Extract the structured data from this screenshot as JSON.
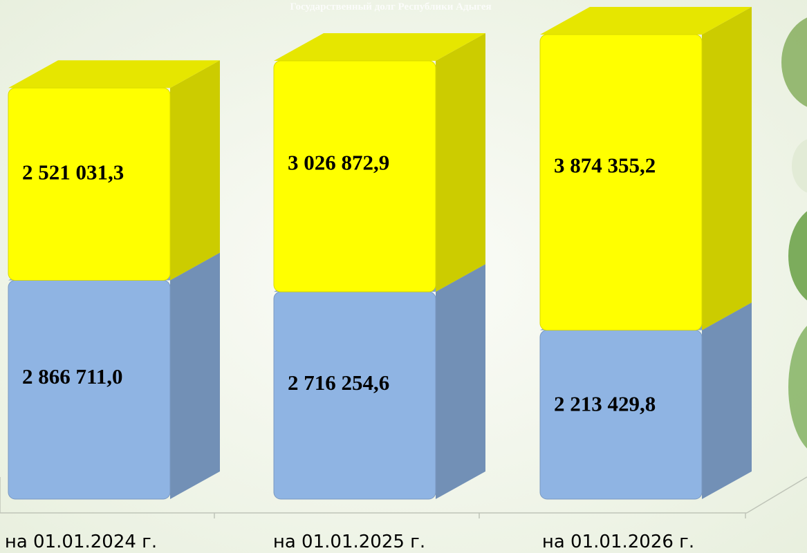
{
  "chart_data": {
    "type": "bar",
    "stacked": true,
    "title": "Государственный долг Республики Адыгея",
    "categories": [
      "на 01.01.2024 г.",
      "на 01.01.2025 г.",
      "на 01.01.2026 г."
    ],
    "series": [
      {
        "color": "#8fb4e3",
        "values": [
          2866711.0,
          2716254.6,
          2213429.8
        ],
        "value_labels": [
          "2 866 711,0",
          "2 716 254,6",
          "2 213 429,8"
        ]
      },
      {
        "color": "#ffff00",
        "values": [
          2521031.3,
          3026872.9,
          3874355.2
        ],
        "value_labels": [
          "2 521 031,3",
          "3 026 872,9",
          "3 874 355,2"
        ]
      }
    ]
  }
}
